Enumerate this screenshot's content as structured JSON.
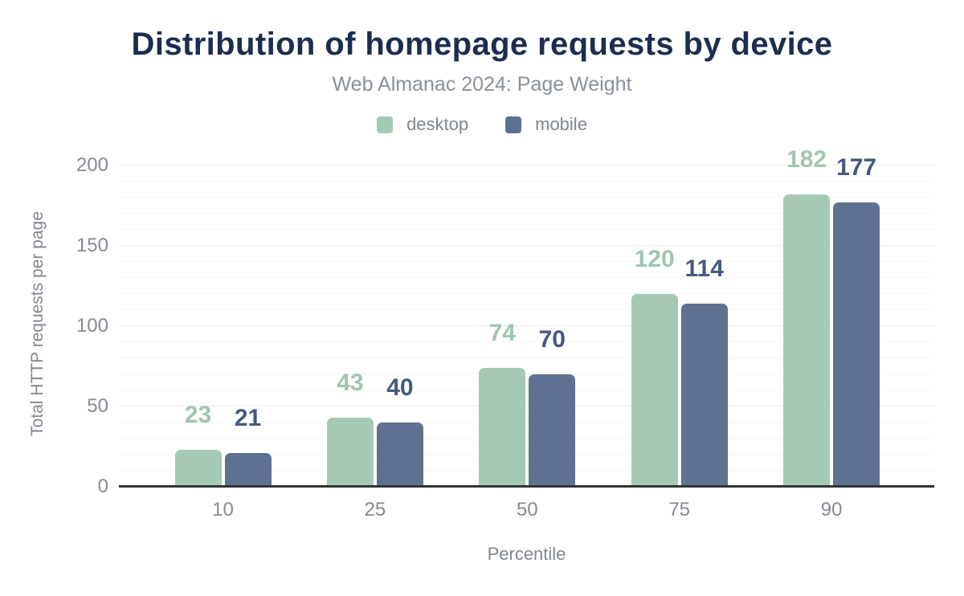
{
  "chart_data": {
    "type": "bar",
    "title": "Distribution of homepage requests by device",
    "subtitle": "Web Almanac 2024: Page Weight",
    "xlabel": "Percentile",
    "ylabel": "Total HTTP requests per page",
    "categories": [
      "10",
      "25",
      "50",
      "75",
      "90"
    ],
    "series": [
      {
        "name": "desktop",
        "values": [
          23,
          43,
          74,
          120,
          182
        ],
        "color": "#a6c9b6",
        "label_color": "#a0c5b1"
      },
      {
        "name": "mobile",
        "values": [
          21,
          40,
          70,
          114,
          177
        ],
        "color": "#5e7190",
        "label_color": "#45597d"
      }
    ],
    "ylim": [
      0,
      200
    ],
    "y_ticks": [
      0,
      50,
      100,
      150,
      200
    ],
    "y_minor_step": 10,
    "grid": true,
    "legend_position": "top",
    "colors": {
      "title": "#1d2d50",
      "subtitle": "#8a909b",
      "axis_line": "#333333",
      "grid_major": "#eaeaea",
      "grid_minor": "#f6f6f6",
      "tick_text": "#848a93"
    }
  }
}
